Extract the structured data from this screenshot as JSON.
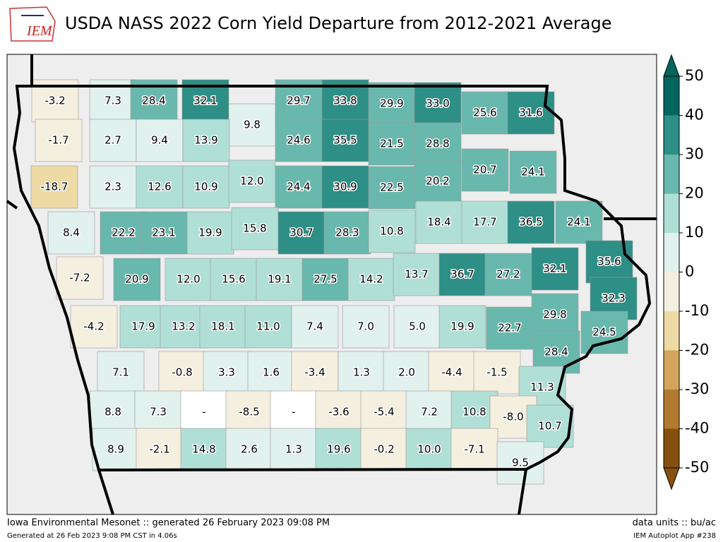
{
  "title": "USDA NASS 2022 Corn Yield Departure from 2012-2021 Average",
  "logo": "IEM",
  "map": {
    "values": [
      -3.2,
      7.3,
      28.4,
      32.1,
      9.8,
      29.7,
      33.8,
      29.9,
      33.0,
      25.6,
      31.6,
      -1.7,
      2.7,
      9.4,
      13.9,
      24.6,
      35.5,
      21.5,
      28.8,
      20.7,
      24.1,
      -18.7,
      2.3,
      12.6,
      10.9,
      12.0,
      24.4,
      30.9,
      22.5,
      20.2,
      8.4,
      22.2,
      23.1,
      19.9,
      15.8,
      30.7,
      28.3,
      10.8,
      18.4,
      17.7,
      36.5,
      24.1,
      -7.2,
      20.9,
      12.0,
      15.6,
      19.1,
      27.5,
      14.2,
      13.7,
      36.7,
      27.2,
      32.1,
      35.6,
      32.3,
      -4.2,
      17.9,
      13.2,
      18.1,
      11.0,
      7.4,
      7.0,
      5.0,
      19.9,
      22.7,
      29.8,
      24.5,
      7.1,
      -0.8,
      3.3,
      1.6,
      -3.4,
      1.3,
      2.0,
      -4.4,
      -1.5,
      28.4,
      11.3,
      8.8,
      7.3,
      null,
      -8.5,
      null,
      -3.6,
      -5.4,
      7.2,
      10.8,
      -8.0,
      10.7,
      8.9,
      -2.1,
      14.8,
      2.6,
      1.3,
      19.6,
      -0.2,
      10.0,
      -7.1,
      9.5
    ],
    "value_labels": [
      "-3.2",
      "7.3",
      "28.4",
      "32.1",
      "9.8",
      "29.7",
      "33.8",
      "29.9",
      "33.0",
      "25.6",
      "31.6",
      "-1.7",
      "2.7",
      "9.4",
      "13.9",
      "24.6",
      "35.5",
      "21.5",
      "28.8",
      "20.7",
      "24.1",
      "-18.7",
      "2.3",
      "12.6",
      "10.9",
      "12.0",
      "24.4",
      "30.9",
      "22.5",
      "20.2",
      "8.4",
      "22.2",
      "23.1",
      "19.9",
      "15.8",
      "30.7",
      "28.3",
      "10.8",
      "18.4",
      "17.7",
      "36.5",
      "24.1",
      "-7.2",
      "20.9",
      "12.0",
      "15.6",
      "19.1",
      "27.5",
      "14.2",
      "13.7",
      "36.7",
      "27.2",
      "32.1",
      "35.6",
      "32.3",
      "-4.2",
      "17.9",
      "13.2",
      "18.1",
      "11.0",
      "7.4",
      "7.0",
      "5.0",
      "19.9",
      "22.7",
      "29.8",
      "24.5",
      "7.1",
      "-0.8",
      "3.3",
      "1.6",
      "-3.4",
      "1.3",
      "2.0",
      "-4.4",
      "-1.5",
      "28.4",
      "11.3",
      "8.8",
      "7.3",
      "-",
      "-8.5",
      "-",
      "-3.6",
      "-5.4",
      "7.2",
      "10.8",
      "-8.0",
      "10.7",
      "8.9",
      "-2.1",
      "14.8",
      "2.6",
      "1.3",
      "19.6",
      "-0.2",
      "10.0",
      "-7.1",
      "9.5"
    ]
  },
  "colorbar": {
    "ticks": [
      -50,
      -40,
      -30,
      -20,
      -10,
      0,
      10,
      20,
      30,
      40,
      50
    ],
    "colors": [
      "#86500f",
      "#b27a2f",
      "#d3a55c",
      "#eedaa5",
      "#f5efdf",
      "#e0f1ee",
      "#b0dfd6",
      "#69b8ad",
      "#2d8f86",
      "#01665e"
    ],
    "missing_color": "#ffffff"
  },
  "footer": {
    "left": "Iowa Environmental Mesonet :: generated 26 February 2023 09:08 PM",
    "right": "data units :: bu/ac",
    "left_small": "Generated at 26 Feb 2023 9:08 PM CST in 4.06s",
    "right_small": "IEM Autoplot App #238"
  }
}
